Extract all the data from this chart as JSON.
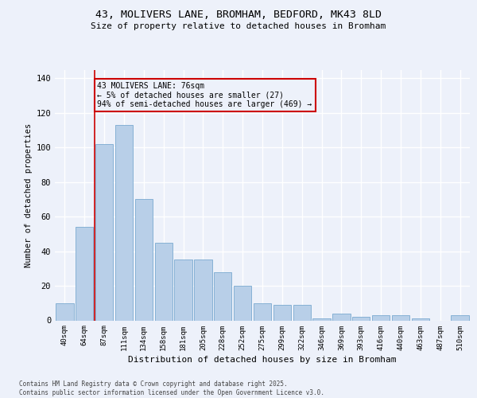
{
  "title_line1": "43, MOLIVERS LANE, BROMHAM, BEDFORD, MK43 8LD",
  "title_line2": "Size of property relative to detached houses in Bromham",
  "xlabel": "Distribution of detached houses by size in Bromham",
  "ylabel": "Number of detached properties",
  "categories": [
    "40sqm",
    "64sqm",
    "87sqm",
    "111sqm",
    "134sqm",
    "158sqm",
    "181sqm",
    "205sqm",
    "228sqm",
    "252sqm",
    "275sqm",
    "299sqm",
    "322sqm",
    "346sqm",
    "369sqm",
    "393sqm",
    "416sqm",
    "440sqm",
    "463sqm",
    "487sqm",
    "510sqm"
  ],
  "values": [
    10,
    54,
    102,
    113,
    70,
    45,
    35,
    35,
    28,
    20,
    10,
    9,
    9,
    1,
    4,
    2,
    3,
    3,
    1,
    0,
    3
  ],
  "bar_color": "#b8cfe8",
  "bar_edge_color": "#7aaad0",
  "vline_x": 1.5,
  "vline_color": "#cc0000",
  "annotation_text": "43 MOLIVERS LANE: 76sqm\n← 5% of detached houses are smaller (27)\n94% of semi-detached houses are larger (469) →",
  "annotation_box_edgecolor": "#cc0000",
  "ylim": [
    0,
    145
  ],
  "yticks": [
    0,
    20,
    40,
    60,
    80,
    100,
    120,
    140
  ],
  "background_color": "#edf1fa",
  "grid_color": "#ffffff",
  "footer": "Contains HM Land Registry data © Crown copyright and database right 2025.\nContains public sector information licensed under the Open Government Licence v3.0."
}
